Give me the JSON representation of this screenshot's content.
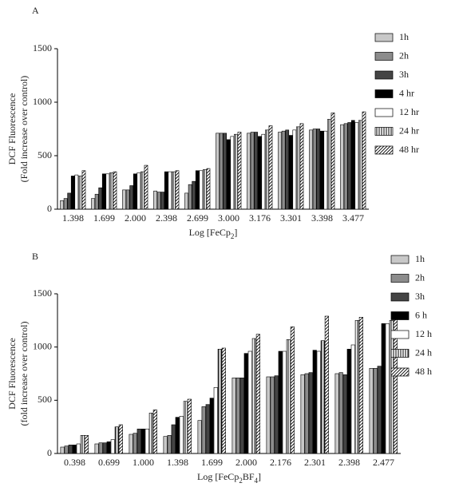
{
  "chart_data": [
    {
      "type": "bar",
      "label": "A",
      "ylabel": [
        "DCF Fluorescence",
        "(Fold increase over control)"
      ],
      "xlabel": [
        "Log [FeCp",
        "2",
        "]"
      ],
      "categories": [
        "1.398",
        "1.699",
        "2.000",
        "2.398",
        "2.699",
        "3.000",
        "3.176",
        "3.301",
        "3.398",
        "3.477"
      ],
      "ylim": [
        0,
        1500
      ],
      "yticks": [
        0,
        500,
        1000,
        1500
      ],
      "series": [
        {
          "name": "1h",
          "color": "#c8c8c8",
          "pattern": "solid",
          "values": [
            80,
            100,
            180,
            170,
            150,
            710,
            710,
            720,
            740,
            790
          ]
        },
        {
          "name": "2h",
          "color": "#8c8c8c",
          "pattern": "solid",
          "values": [
            100,
            140,
            180,
            160,
            230,
            710,
            720,
            730,
            750,
            800
          ]
        },
        {
          "name": "3h",
          "color": "#444444",
          "pattern": "solid",
          "values": [
            150,
            200,
            220,
            160,
            260,
            710,
            720,
            740,
            750,
            810
          ]
        },
        {
          "name": "4 hr",
          "color": "#000000",
          "pattern": "solid",
          "values": [
            310,
            330,
            330,
            350,
            360,
            650,
            680,
            690,
            730,
            830
          ]
        },
        {
          "name": "12 hr",
          "color": "#ffffff",
          "pattern": "solid",
          "values": [
            320,
            330,
            340,
            350,
            360,
            680,
            700,
            740,
            730,
            810
          ]
        },
        {
          "name": "24 hr",
          "color": "#000000",
          "pattern": "vertical",
          "values": [
            310,
            340,
            350,
            350,
            370,
            700,
            740,
            770,
            840,
            830
          ]
        },
        {
          "name": "48 hr",
          "color": "#000000",
          "pattern": "diagonal",
          "values": [
            360,
            350,
            410,
            360,
            380,
            720,
            780,
            800,
            900,
            910
          ]
        }
      ]
    },
    {
      "type": "bar",
      "label": "B",
      "ylabel": [
        "DCF Fluorescence",
        "(fold increase over control)"
      ],
      "xlabel": [
        "Log [FeCp",
        "2",
        "BF",
        "4",
        "]"
      ],
      "categories": [
        "0.398",
        "0.699",
        "1.000",
        "1.398",
        "1.699",
        "2.000",
        "2.176",
        "2.301",
        "2.398",
        "2.477"
      ],
      "ylim": [
        0,
        1500
      ],
      "yticks": [
        0,
        500,
        1000,
        1500
      ],
      "series": [
        {
          "name": "1h",
          "color": "#c8c8c8",
          "pattern": "solid",
          "values": [
            60,
            90,
            180,
            160,
            310,
            710,
            720,
            740,
            750,
            800
          ]
        },
        {
          "name": "2h",
          "color": "#8c8c8c",
          "pattern": "solid",
          "values": [
            70,
            100,
            190,
            170,
            440,
            710,
            720,
            750,
            760,
            800
          ]
        },
        {
          "name": "3h",
          "color": "#444444",
          "pattern": "solid",
          "values": [
            80,
            100,
            230,
            270,
            460,
            710,
            730,
            760,
            740,
            820
          ]
        },
        {
          "name": "6 h",
          "color": "#000000",
          "pattern": "solid",
          "values": [
            80,
            110,
            230,
            340,
            520,
            940,
            960,
            970,
            980,
            1220
          ]
        },
        {
          "name": "12 h",
          "color": "#ffffff",
          "pattern": "solid",
          "values": [
            90,
            130,
            230,
            350,
            620,
            960,
            960,
            960,
            1020,
            1220
          ]
        },
        {
          "name": "24 h",
          "color": "#000000",
          "pattern": "vertical",
          "values": [
            170,
            250,
            380,
            490,
            980,
            1080,
            1070,
            1060,
            1250,
            1250
          ]
        },
        {
          "name": "48 h",
          "color": "#000000",
          "pattern": "diagonal",
          "values": [
            170,
            270,
            410,
            510,
            990,
            1120,
            1190,
            1290,
            1280,
            1320
          ]
        }
      ]
    }
  ]
}
